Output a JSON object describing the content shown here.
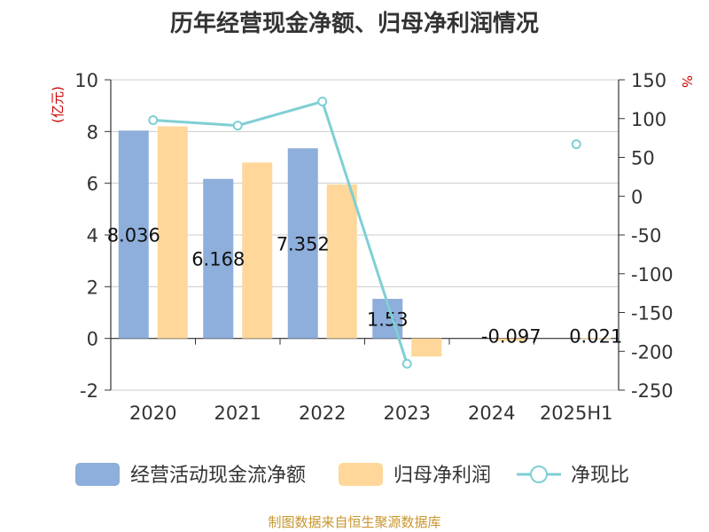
{
  "chart_data": {
    "type": "bar",
    "title": "历年经营现金净额、归母净利润情况",
    "categories": [
      "2020",
      "2021",
      "2022",
      "2023",
      "2024",
      "2025H1"
    ],
    "y_left": {
      "label": "(亿元)",
      "range": [
        -2,
        10
      ],
      "ticks": [
        "10",
        "8",
        "6",
        "4",
        "2",
        "0",
        "-2"
      ]
    },
    "y_right": {
      "label": "%",
      "range": [
        -250,
        150
      ],
      "ticks": [
        "150",
        "100",
        "50",
        "0",
        "-50",
        "-100",
        "-150",
        "-200",
        "-250"
      ]
    },
    "series": [
      {
        "name": "经营活动现金流净额",
        "type": "bar",
        "color": "#8eaedb",
        "values": [
          8.036,
          6.168,
          7.352,
          1.53,
          null,
          null
        ],
        "labels": [
          "8.036",
          "6.168",
          "7.352",
          "1.53",
          "",
          ""
        ]
      },
      {
        "name": "归母净利润",
        "type": "bar",
        "color": "#ffd79a",
        "values": [
          8.2,
          6.8,
          5.95,
          -0.7,
          -0.097,
          0.021
        ],
        "labels": [
          "",
          "",
          "",
          "",
          "-0.097",
          "0.021"
        ]
      },
      {
        "name": "净现比",
        "type": "line",
        "axis": "right",
        "color": "#7fcfd4",
        "values": [
          98,
          91,
          122,
          -216,
          null,
          67
        ]
      }
    ],
    "grid": true,
    "legend": "bottom"
  },
  "footer": {
    "source": "制图数据来自恒生聚源数据库"
  }
}
